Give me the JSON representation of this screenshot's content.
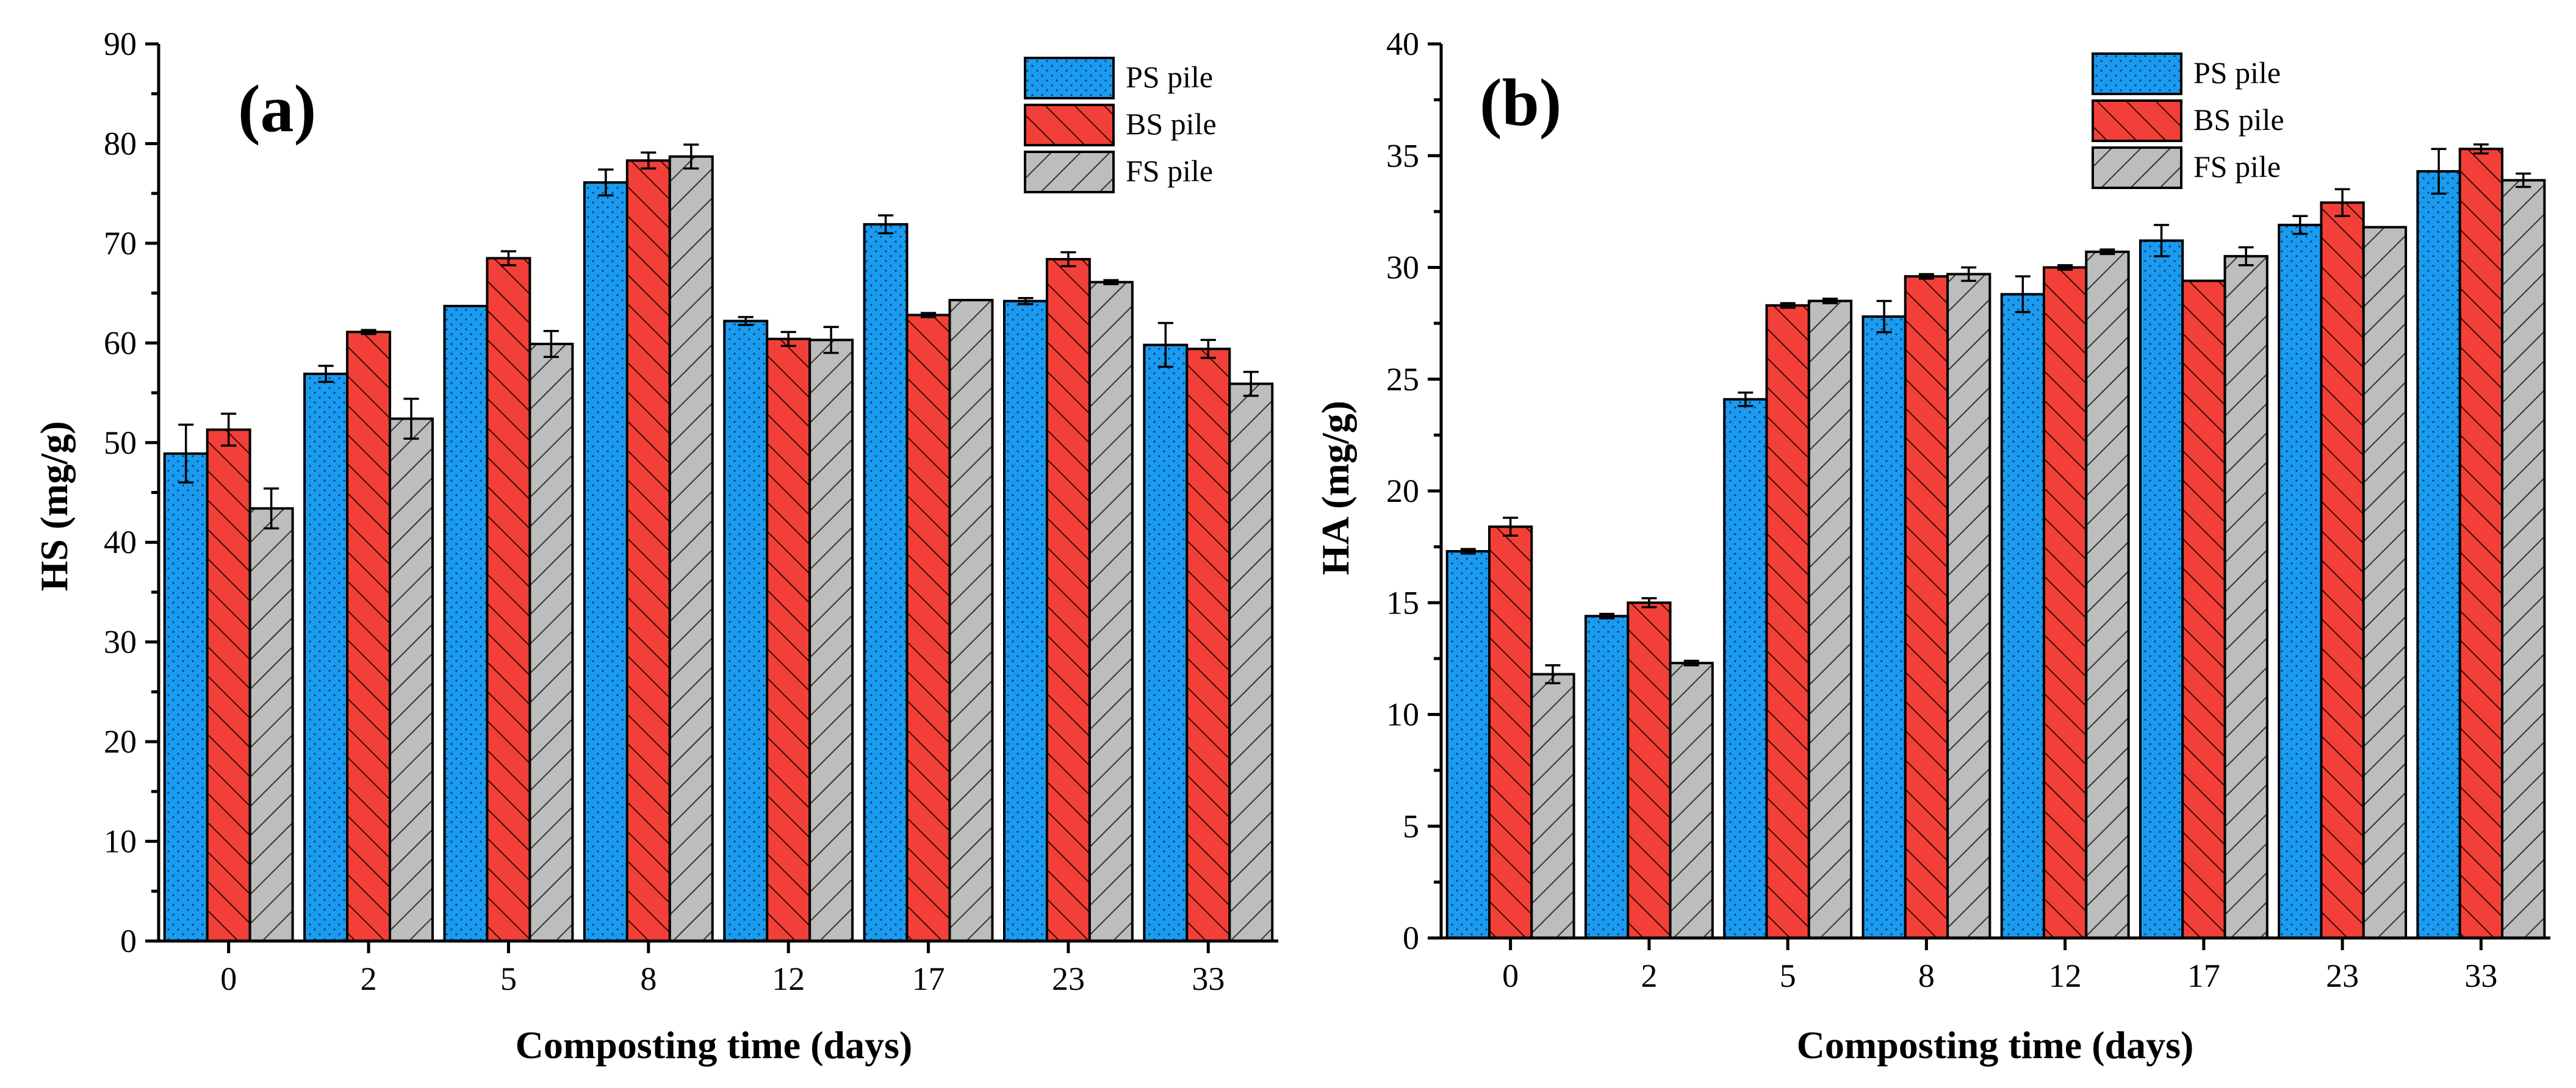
{
  "colors": {
    "ps": "#1a9bef",
    "bs": "#f24038",
    "fs": "#bdbdbd"
  },
  "chart_data": [
    {
      "type": "bar",
      "panel_label": "(a)",
      "xlabel": "Composting time (days)",
      "ylabel": "HS (mg/g)",
      "ylim": [
        0,
        90
      ],
      "yticks": [
        0,
        10,
        20,
        30,
        40,
        50,
        60,
        70,
        80,
        90
      ],
      "categories": [
        "0",
        "2",
        "5",
        "8",
        "12",
        "17",
        "23",
        "33"
      ],
      "legend_position": "top-right",
      "series": [
        {
          "name": "PS pile",
          "key": "ps",
          "values": [
            48.9,
            56.9,
            63.7,
            76.1,
            62.2,
            71.9,
            64.2,
            59.8
          ],
          "errors": [
            2.9,
            0.8,
            0.0,
            1.3,
            0.4,
            0.9,
            0.3,
            2.2
          ]
        },
        {
          "name": "BS pile",
          "key": "bs",
          "values": [
            51.3,
            61.1,
            68.5,
            78.3,
            60.4,
            62.8,
            68.4,
            59.4
          ],
          "errors": [
            1.6,
            0.2,
            0.7,
            0.8,
            0.7,
            0.2,
            0.7,
            0.9
          ]
        },
        {
          "name": "FS pile",
          "key": "fs",
          "values": [
            43.4,
            52.4,
            59.9,
            78.7,
            60.3,
            64.3,
            66.1,
            55.9
          ],
          "errors": [
            2.0,
            2.0,
            1.3,
            1.2,
            1.3,
            0.0,
            0.2,
            1.2
          ]
        }
      ]
    },
    {
      "type": "bar",
      "panel_label": "(b)",
      "xlabel": "Composting time (days)",
      "ylabel": "HA (mg/g)",
      "ylim": [
        0,
        40
      ],
      "yticks": [
        0,
        5,
        10,
        15,
        20,
        25,
        30,
        35,
        40
      ],
      "categories": [
        "0",
        "2",
        "5",
        "8",
        "12",
        "17",
        "23",
        "33"
      ],
      "legend_position": "top-right",
      "series": [
        {
          "name": "PS pile",
          "key": "ps",
          "values": [
            17.3,
            14.4,
            24.1,
            27.8,
            28.8,
            31.2,
            31.9,
            34.3
          ],
          "errors": [
            0.1,
            0.1,
            0.3,
            0.7,
            0.8,
            0.7,
            0.4,
            1.0
          ]
        },
        {
          "name": "BS pile",
          "key": "bs",
          "values": [
            18.4,
            15.0,
            28.3,
            29.6,
            30.0,
            29.4,
            32.9,
            35.3
          ],
          "errors": [
            0.4,
            0.2,
            0.1,
            0.1,
            0.1,
            0.0,
            0.6,
            0.2
          ]
        },
        {
          "name": "FS pile",
          "key": "fs",
          "values": [
            11.8,
            12.3,
            28.5,
            29.7,
            30.7,
            30.5,
            31.8,
            33.9
          ],
          "errors": [
            0.4,
            0.1,
            0.1,
            0.3,
            0.1,
            0.4,
            0.0,
            0.3
          ]
        }
      ]
    }
  ]
}
